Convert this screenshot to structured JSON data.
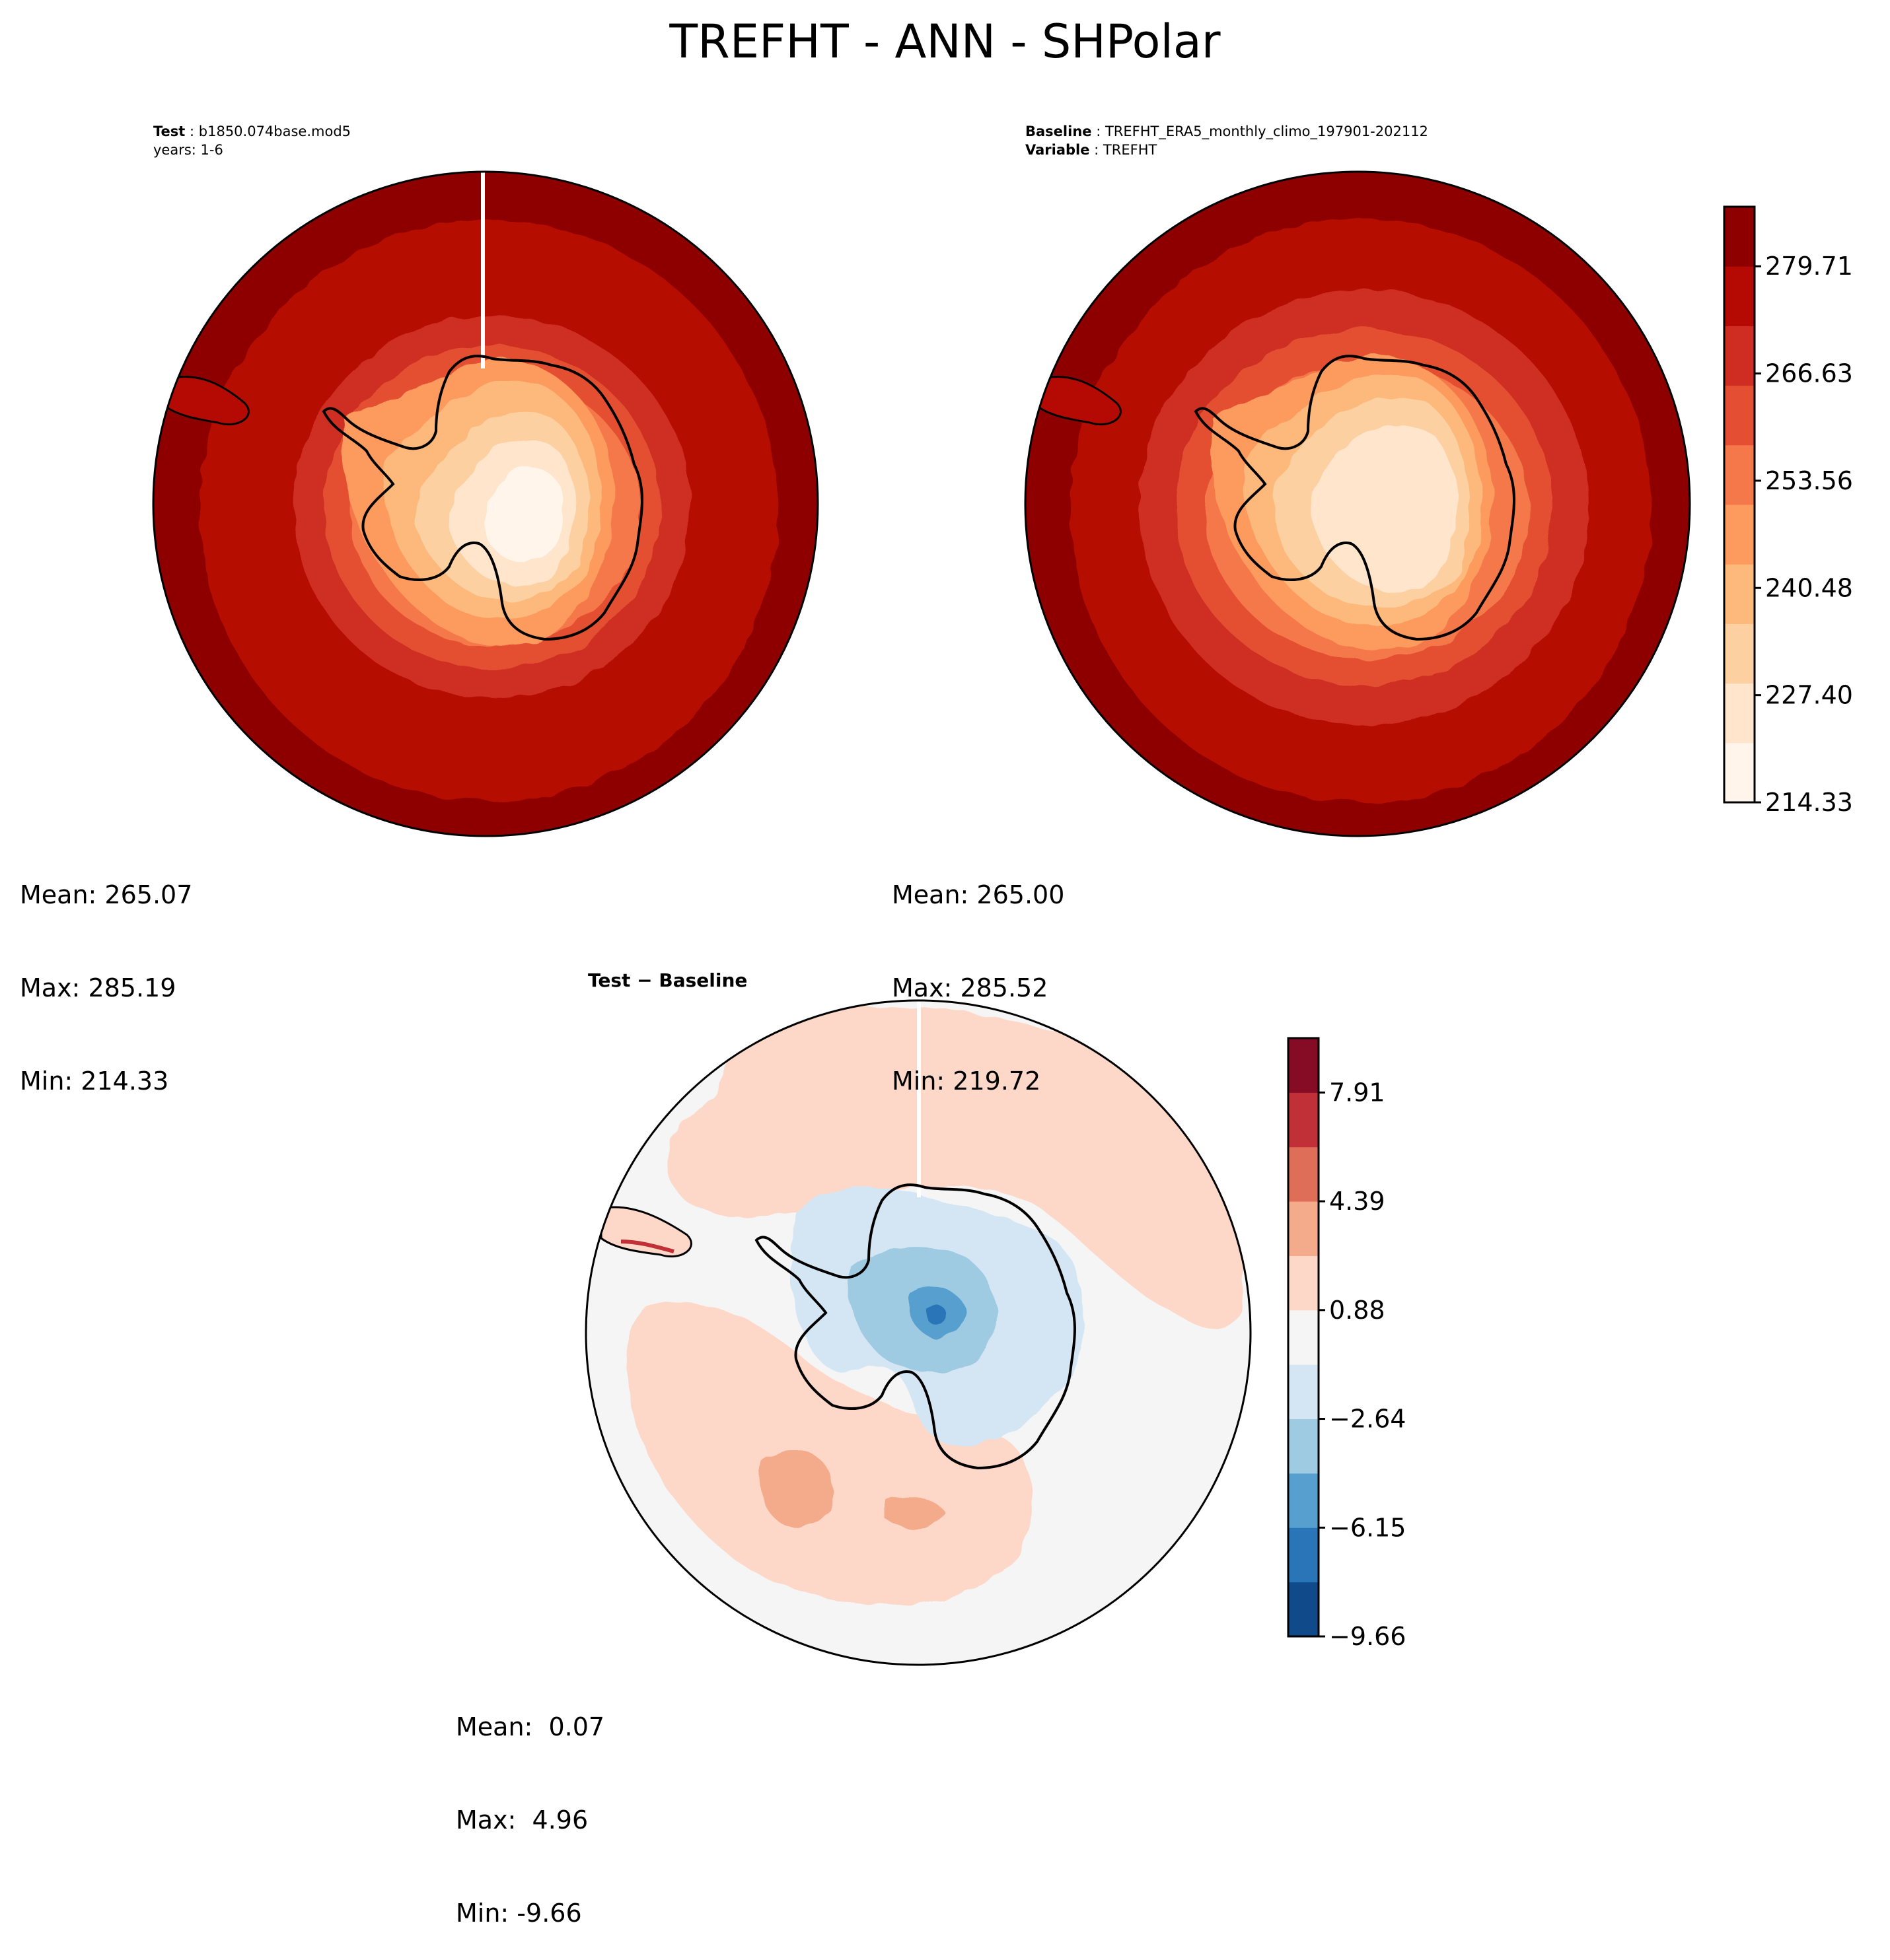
{
  "title": "TREFHT - ANN - SHPolar",
  "panels": {
    "test": {
      "header_key": "Test",
      "header_value": "b1850.074base.mod5",
      "header_line2": "years: 1-6",
      "mean": "Mean: 265.07",
      "max": "Max: 285.19",
      "min": "Min: 214.33"
    },
    "baseline": {
      "header_key": "Baseline",
      "header_value": "TREFHT_ERA5_monthly_climo_197901-202112",
      "header_key2": "Variable",
      "header_value2": "TREFHT",
      "mean": "Mean: 265.00",
      "max": "Max: 285.52",
      "min": "Min: 219.72"
    },
    "diff": {
      "title": "Test − Baseline",
      "mean": "Mean:  0.07",
      "max": "Max:  4.96",
      "min": "Min: -9.66"
    }
  },
  "colorbars": {
    "main": {
      "ticks": [
        "279.71",
        "266.63",
        "253.56",
        "240.48",
        "227.40",
        "214.33"
      ],
      "colors": [
        "#fff5eb",
        "#fee5cc",
        "#fdd0a2",
        "#fdb97b",
        "#fd9a5d",
        "#f4784a",
        "#e44f33",
        "#cf2d21",
        "#b50a04",
        "#8e0000"
      ]
    },
    "diff": {
      "ticks": [
        "7.91",
        "4.39",
        "0.88",
        "−2.64",
        "−6.15",
        "−9.66"
      ],
      "colors": [
        "#104a8a",
        "#2a74b8",
        "#569fcf",
        "#9fcbe2",
        "#d4e6f3",
        "#f5f5f5",
        "#fdd8c8",
        "#f4ab8b",
        "#df6e58",
        "#c13036",
        "#860b25"
      ]
    }
  }
}
